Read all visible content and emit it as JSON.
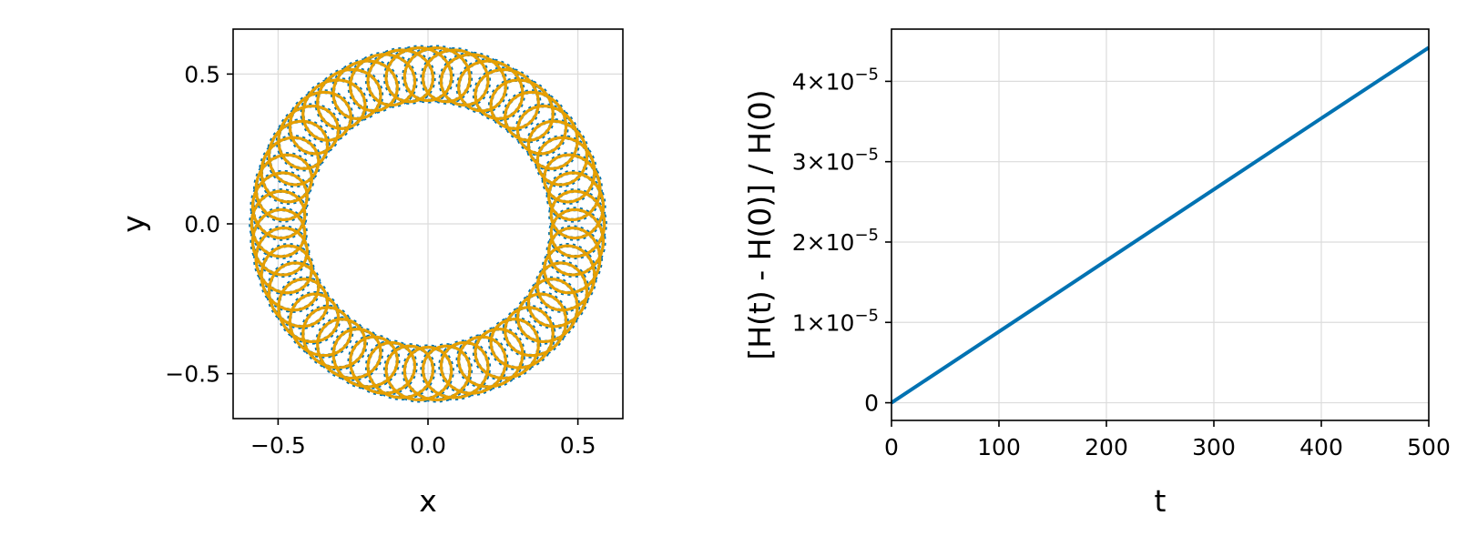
{
  "chart_data": [
    {
      "type": "line",
      "title": "",
      "xlabel": "x",
      "ylabel": "y",
      "xlim": [
        -0.65,
        0.65
      ],
      "ylim": [
        -0.65,
        0.65
      ],
      "grid": true,
      "x_ticks": [
        {
          "value": -0.5,
          "label": "−0.5"
        },
        {
          "value": 0.0,
          "label": "0.0"
        },
        {
          "value": 0.5,
          "label": "0.5"
        }
      ],
      "y_ticks": [
        {
          "value": -0.5,
          "label": "−0.5"
        },
        {
          "value": 0.0,
          "label": "0.0"
        },
        {
          "value": 0.5,
          "label": "0.5"
        }
      ],
      "series": [
        {
          "color": "#0072b2",
          "style": "dotted",
          "center_radius": 0.5,
          "epicycle_radius": 0.095,
          "loops": 50,
          "radial_squash": 0.95,
          "x": [],
          "y": []
        },
        {
          "color": "#e69f00",
          "style": "solid",
          "center_radius": 0.5,
          "epicycle_radius": 0.093,
          "loops": 50,
          "radial_squash": 0.95,
          "x": [],
          "y": []
        }
      ]
    },
    {
      "type": "line",
      "title": "",
      "xlabel": "t",
      "ylabel": "[H(t) - H(0)] / H(0)",
      "xlim": [
        0,
        500
      ],
      "ylim": [
        -2.2e-06,
        4.65e-05
      ],
      "grid": true,
      "x_ticks": [
        {
          "value": 0,
          "label": "0"
        },
        {
          "value": 100,
          "label": "100"
        },
        {
          "value": 200,
          "label": "200"
        },
        {
          "value": 300,
          "label": "300"
        },
        {
          "value": 400,
          "label": "400"
        },
        {
          "value": 500,
          "label": "500"
        }
      ],
      "y_ticks": [
        {
          "value": 0,
          "mantissa": "0",
          "exponent": ""
        },
        {
          "value": 1e-05,
          "mantissa": "1×10",
          "exponent": "−5"
        },
        {
          "value": 2e-05,
          "mantissa": "2×10",
          "exponent": "−5"
        },
        {
          "value": 3e-05,
          "mantissa": "3×10",
          "exponent": "−5"
        },
        {
          "value": 4e-05,
          "mantissa": "4×10",
          "exponent": "−5"
        }
      ],
      "series": [
        {
          "color": "#0072b2",
          "x": [
            0,
            100,
            200,
            300,
            400,
            500
          ],
          "y": [
            0,
            8.85e-06,
            1.77e-05,
            2.655e-05,
            3.54e-05,
            4.42e-05
          ]
        }
      ]
    }
  ]
}
